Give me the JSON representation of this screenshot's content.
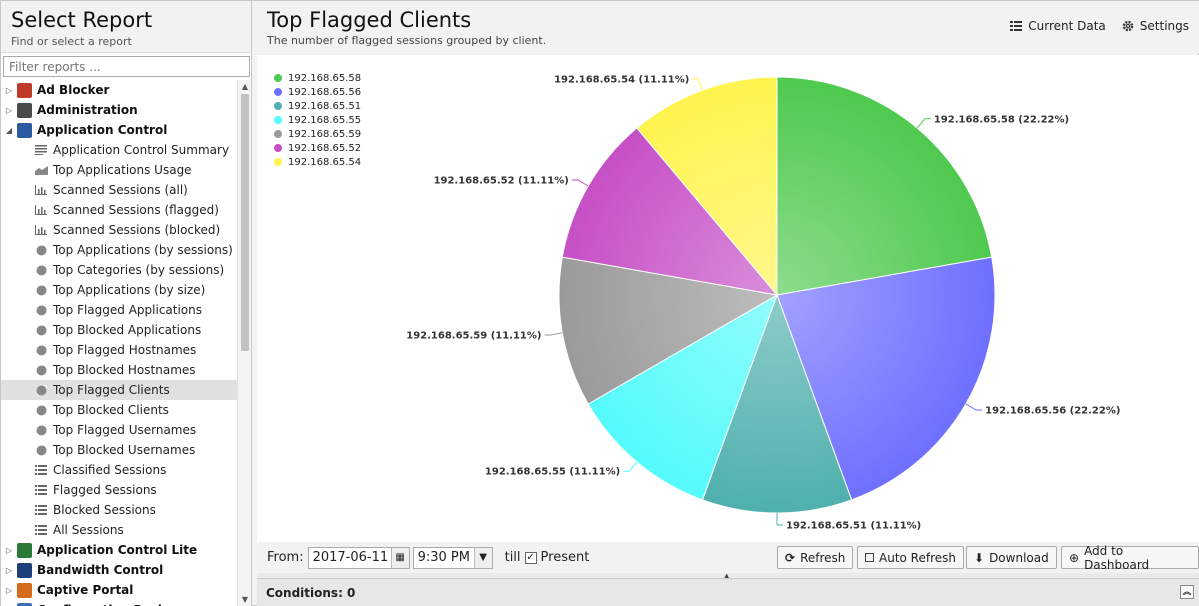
{
  "sidebar": {
    "title": "Select Report",
    "subtitle": "Find or select a report",
    "filter_placeholder": "Filter reports ...",
    "categories": [
      {
        "label": "Ad Blocker",
        "expanded": false,
        "icon": "ads-icon",
        "color": "#c0392b"
      },
      {
        "label": "Administration",
        "expanded": false,
        "icon": "admin-icon",
        "color": "#4a4a4a"
      },
      {
        "label": "Application Control",
        "expanded": true,
        "icon": "app-control-icon",
        "color": "#2c5aa0"
      }
    ],
    "leaves": [
      {
        "label": "Application Control Summary",
        "icon": "text-icon"
      },
      {
        "label": "Top Applications Usage",
        "icon": "area-chart-icon"
      },
      {
        "label": "Scanned Sessions (all)",
        "icon": "bar-chart-icon"
      },
      {
        "label": "Scanned Sessions (flagged)",
        "icon": "bar-chart-icon"
      },
      {
        "label": "Scanned Sessions (blocked)",
        "icon": "bar-chart-icon"
      },
      {
        "label": "Top Applications (by sessions)",
        "icon": "pie-chart-icon"
      },
      {
        "label": "Top Categories (by sessions)",
        "icon": "pie-chart-icon"
      },
      {
        "label": "Top Applications (by size)",
        "icon": "pie-chart-icon"
      },
      {
        "label": "Top Flagged Applications",
        "icon": "pie-chart-icon"
      },
      {
        "label": "Top Blocked Applications",
        "icon": "pie-chart-icon"
      },
      {
        "label": "Top Flagged Hostnames",
        "icon": "pie-chart-icon"
      },
      {
        "label": "Top Blocked Hostnames",
        "icon": "pie-chart-icon"
      },
      {
        "label": "Top Flagged Clients",
        "icon": "pie-chart-icon",
        "selected": true
      },
      {
        "label": "Top Blocked Clients",
        "icon": "pie-chart-icon"
      },
      {
        "label": "Top Flagged Usernames",
        "icon": "pie-chart-icon"
      },
      {
        "label": "Top Blocked Usernames",
        "icon": "pie-chart-icon"
      },
      {
        "label": "Classified Sessions",
        "icon": "list-icon"
      },
      {
        "label": "Flagged Sessions",
        "icon": "list-icon"
      },
      {
        "label": "Blocked Sessions",
        "icon": "list-icon"
      },
      {
        "label": "All Sessions",
        "icon": "list-icon"
      }
    ],
    "categories_after": [
      {
        "label": "Application Control Lite",
        "icon": "app-control-lite-icon",
        "color": "#2c7a3a"
      },
      {
        "label": "Bandwidth Control",
        "icon": "bandwidth-icon",
        "color": "#1f3f7a"
      },
      {
        "label": "Captive Portal",
        "icon": "captive-portal-icon",
        "color": "#d46a1a"
      },
      {
        "label": "Configuration Backup",
        "icon": "backup-icon",
        "color": "#3a6fb0"
      }
    ]
  },
  "header": {
    "title": "Top Flagged Clients",
    "subtitle": "The number of flagged sessions grouped by client.",
    "current_data_label": "Current Data",
    "settings_label": "Settings"
  },
  "chart_data": {
    "type": "pie",
    "title": "",
    "slices": [
      {
        "label": "192.168.65.58",
        "value": 22.22,
        "color": "#4fc94f"
      },
      {
        "label": "192.168.65.56",
        "value": 22.22,
        "color": "#6f6fff"
      },
      {
        "label": "192.168.65.51",
        "value": 11.11,
        "color": "#4fb0ad"
      },
      {
        "label": "192.168.65.55",
        "value": 11.11,
        "color": "#55fbfb"
      },
      {
        "label": "192.168.65.59",
        "value": 11.11,
        "color": "#9a9a9a"
      },
      {
        "label": "192.168.65.52",
        "value": 11.11,
        "color": "#c64fc6"
      },
      {
        "label": "192.168.65.54",
        "value": 11.11,
        "color": "#fff44f"
      }
    ],
    "data_labels": [
      "192.168.65.58 (22.22%)",
      "192.168.65.56 (22.22%)",
      "192.168.65.51 (11.11%)",
      "192.168.65.55 (11.11%)",
      "192.168.65.59 (11.11%)",
      "192.168.65.52 (11.11%)",
      "192.168.65.54 (11.11%)"
    ],
    "legend_position": "top-left"
  },
  "toolbar": {
    "from_label": "From:",
    "date_value": "2017-06-11",
    "time_value": "9:30 PM",
    "till_label": "till",
    "present_label": "Present",
    "present_checked": true,
    "refresh_label": "Refresh",
    "auto_refresh_label": "Auto Refresh",
    "download_label": "Download",
    "add_dashboard_label": "Add to Dashboard"
  },
  "conditions": {
    "label": "Conditions: 0"
  }
}
